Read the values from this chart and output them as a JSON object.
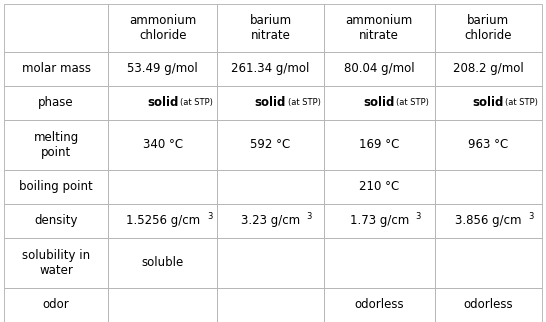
{
  "columns": [
    "",
    "ammonium\nchloride",
    "barium\nnitrate",
    "ammonium\nnitrate",
    "barium\nchloride"
  ],
  "rows": [
    {
      "label": "molar mass",
      "values": [
        "53.49 g/mol",
        "261.34 g/mol",
        "80.04 g/mol",
        "208.2 g/mol"
      ]
    },
    {
      "label": "phase",
      "values": [
        "solid_stp",
        "solid_stp",
        "solid_stp",
        "solid_stp"
      ]
    },
    {
      "label": "melting\npoint",
      "values": [
        "340 °C",
        "592 °C",
        "169 °C",
        "963 °C"
      ]
    },
    {
      "label": "boiling point",
      "values": [
        "",
        "",
        "210 °C",
        ""
      ]
    },
    {
      "label": "density",
      "values": [
        "density_1",
        "density_2",
        "density_3",
        "density_4"
      ]
    },
    {
      "label": "solubility in\nwater",
      "values": [
        "soluble",
        "",
        "",
        ""
      ]
    },
    {
      "label": "odor",
      "values": [
        "",
        "",
        "odorless",
        "odorless"
      ]
    }
  ],
  "density_values": [
    "1.5256 g/cm",
    "3.23 g/cm",
    "1.73 g/cm",
    "3.856 g/cm"
  ],
  "bg_color": "#ffffff",
  "line_color": "#b0b0b0",
  "text_color": "#000000",
  "header_fontsize": 8.5,
  "cell_fontsize": 8.5,
  "label_fontsize": 8.5
}
